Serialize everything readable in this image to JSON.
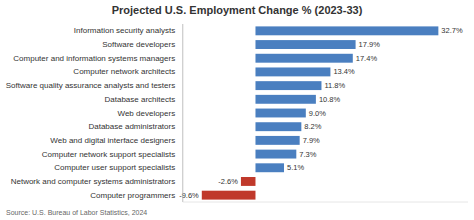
{
  "chart_data": {
    "type": "bar",
    "orientation": "horizontal",
    "title": "Projected U.S. Employment Change % (2023-33)",
    "source": "Source: U.S. Bureau of Labor Statistics, 2024",
    "categories": [
      "Computer programmers",
      "Network and computer systems administrators",
      "Computer user support specialists",
      "Computer network support specialists",
      "Web and digital interface designers",
      "Database administrators",
      "Web developers",
      "Database architects",
      "Software quality assurance analysts and testers",
      "Computer network architects",
      "Computer and information systems managers",
      "Software developers",
      "Information security analysts"
    ],
    "values": [
      -9.6,
      -2.6,
      5.1,
      7.3,
      7.9,
      8.2,
      9.0,
      10.8,
      11.8,
      13.4,
      17.4,
      17.9,
      32.7
    ],
    "value_labels": [
      "-9.6%",
      "-2.6%",
      "5.1%",
      "7.3%",
      "7.9%",
      "8.2%",
      "9.0%",
      "10.8%",
      "11.8%",
      "13.4%",
      "17.4%",
      "17.9%",
      "32.7%"
    ],
    "colors": [
      "#c0392b",
      "#c0392b",
      "#4a7fc0",
      "#4a7fc0",
      "#4a7fc0",
      "#4a7fc0",
      "#4a7fc0",
      "#4a7fc0",
      "#4a7fc0",
      "#4a7fc0",
      "#4a7fc0",
      "#4a7fc0",
      "#4a7fc0"
    ],
    "xlim": [
      -13,
      38
    ],
    "data_labels": true,
    "tick_labels": "y",
    "grid": false
  }
}
